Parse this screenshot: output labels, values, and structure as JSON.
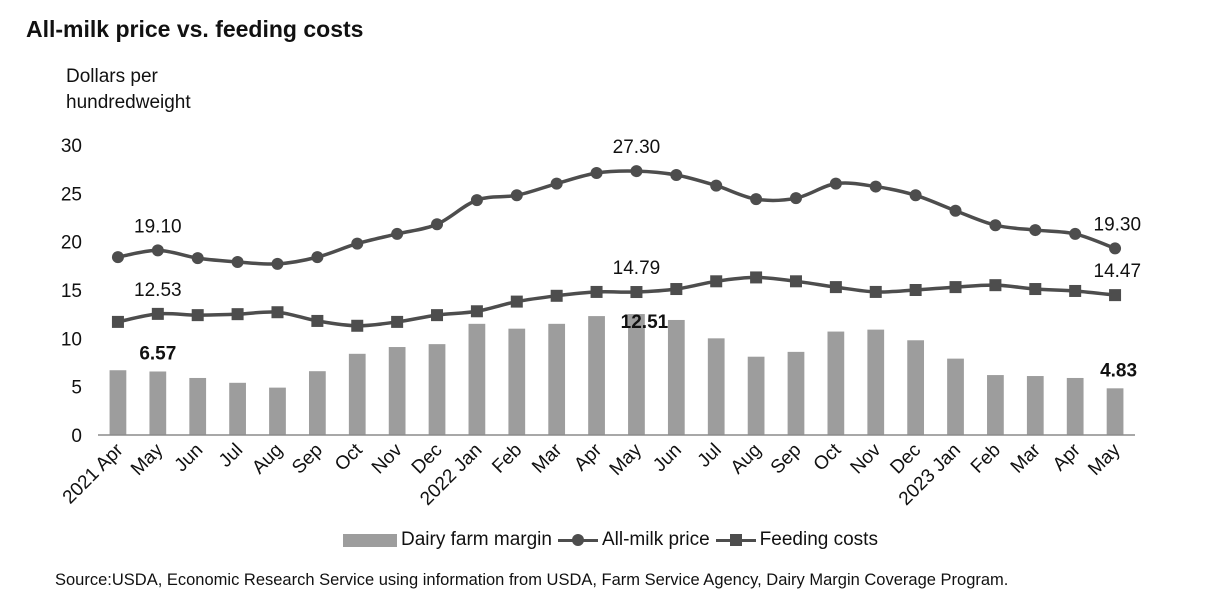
{
  "chart_data": {
    "type": "bar+line",
    "title": "All-milk price vs. feeding costs",
    "ylabel": "Dollars per hundredweight",
    "ylim": [
      0,
      30
    ],
    "yticks": [
      0,
      5,
      10,
      15,
      20,
      25,
      30
    ],
    "categories": [
      "2021 Apr",
      "May",
      "Jun",
      "Jul",
      "Aug",
      "Sep",
      "Oct",
      "Nov",
      "Dec",
      "2022 Jan",
      "Feb",
      "Mar",
      "Apr",
      "May",
      "Jun",
      "Jul",
      "Aug",
      "Sep",
      "Oct",
      "Nov",
      "Dec",
      "2023 Jan",
      "Feb",
      "Mar",
      "Apr",
      "May"
    ],
    "series": [
      {
        "name": "Dairy farm margin",
        "kind": "bar",
        "values": [
          6.7,
          6.57,
          5.9,
          5.4,
          4.9,
          6.6,
          8.4,
          9.1,
          9.4,
          11.5,
          11.0,
          11.5,
          12.3,
          12.51,
          11.9,
          10.0,
          8.1,
          8.6,
          10.7,
          10.9,
          9.8,
          7.9,
          6.2,
          6.1,
          5.9,
          4.83
        ]
      },
      {
        "name": "All-milk price",
        "kind": "line",
        "marker": "circle",
        "values": [
          18.4,
          19.1,
          18.3,
          17.9,
          17.7,
          18.4,
          19.8,
          20.8,
          21.8,
          24.3,
          24.8,
          26.0,
          27.1,
          27.3,
          26.9,
          25.8,
          24.4,
          24.5,
          26.0,
          25.7,
          24.8,
          23.2,
          21.7,
          21.2,
          20.8,
          19.3
        ]
      },
      {
        "name": "Feeding costs",
        "kind": "line",
        "marker": "square",
        "values": [
          11.7,
          12.53,
          12.4,
          12.5,
          12.7,
          11.8,
          11.3,
          11.7,
          12.4,
          12.8,
          13.8,
          14.4,
          14.8,
          14.79,
          15.1,
          15.9,
          16.3,
          15.9,
          15.3,
          14.8,
          15.0,
          15.3,
          15.5,
          15.1,
          14.9,
          14.47
        ]
      }
    ],
    "annotations": [
      {
        "series": 1,
        "index": 1,
        "text": "19.10",
        "bold": false
      },
      {
        "series": 1,
        "index": 13,
        "text": "27.30",
        "bold": false
      },
      {
        "series": 1,
        "index": 25,
        "text": "19.30",
        "bold": false
      },
      {
        "series": 2,
        "index": 1,
        "text": "12.53",
        "bold": false
      },
      {
        "series": 2,
        "index": 13,
        "text": "14.79",
        "bold": false
      },
      {
        "series": 2,
        "index": 25,
        "text": "14.47",
        "bold": false
      },
      {
        "series": 0,
        "index": 1,
        "text": "6.57",
        "bold": true
      },
      {
        "series": 0,
        "index": 13,
        "text": "12.51",
        "bold": true
      },
      {
        "series": 0,
        "index": 25,
        "text": "4.83",
        "bold": true
      }
    ],
    "legend": "bottom",
    "grid": false,
    "colors": {
      "bar": "#9d9d9d",
      "line": "#4d4d4d"
    }
  },
  "source": "Source:USDA, Economic Research Service using information from USDA, Farm Service Agency, Dairy Margin Coverage Program."
}
